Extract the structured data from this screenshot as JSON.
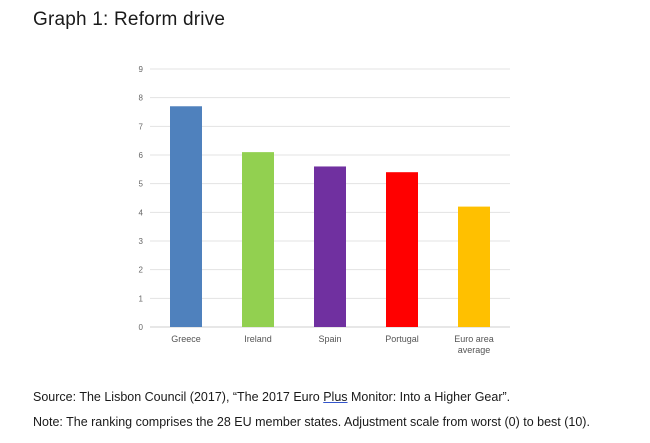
{
  "title": "Graph 1: Reform drive",
  "source": {
    "prefix": "Source: The Lisbon Council (2017), “The 2017 Euro ",
    "link": "Plus",
    "suffix": " Monitor: Into a Higher Gear”."
  },
  "note": "Note: The ranking comprises the 28 EU member states. Adjustment scale from worst (0) to best (10).",
  "chart_data": {
    "type": "bar",
    "title": "",
    "xlabel": "",
    "ylabel": "",
    "categories": [
      "Greece",
      "Ireland",
      "Spain",
      "Portugal",
      "Euro area average"
    ],
    "category_lines": [
      [
        "Greece"
      ],
      [
        "Ireland"
      ],
      [
        "Spain"
      ],
      [
        "Portugal"
      ],
      [
        "Euro area",
        "average"
      ]
    ],
    "values": [
      7.7,
      6.1,
      5.6,
      5.4,
      4.2
    ],
    "colors": [
      "#4f81bd",
      "#92d050",
      "#7030a0",
      "#ff0000",
      "#ffc000"
    ],
    "ylim": [
      0,
      9
    ],
    "yticks": [
      0,
      1,
      2,
      3,
      4,
      5,
      6,
      7,
      8,
      9
    ],
    "grid": true,
    "legend": "none"
  }
}
